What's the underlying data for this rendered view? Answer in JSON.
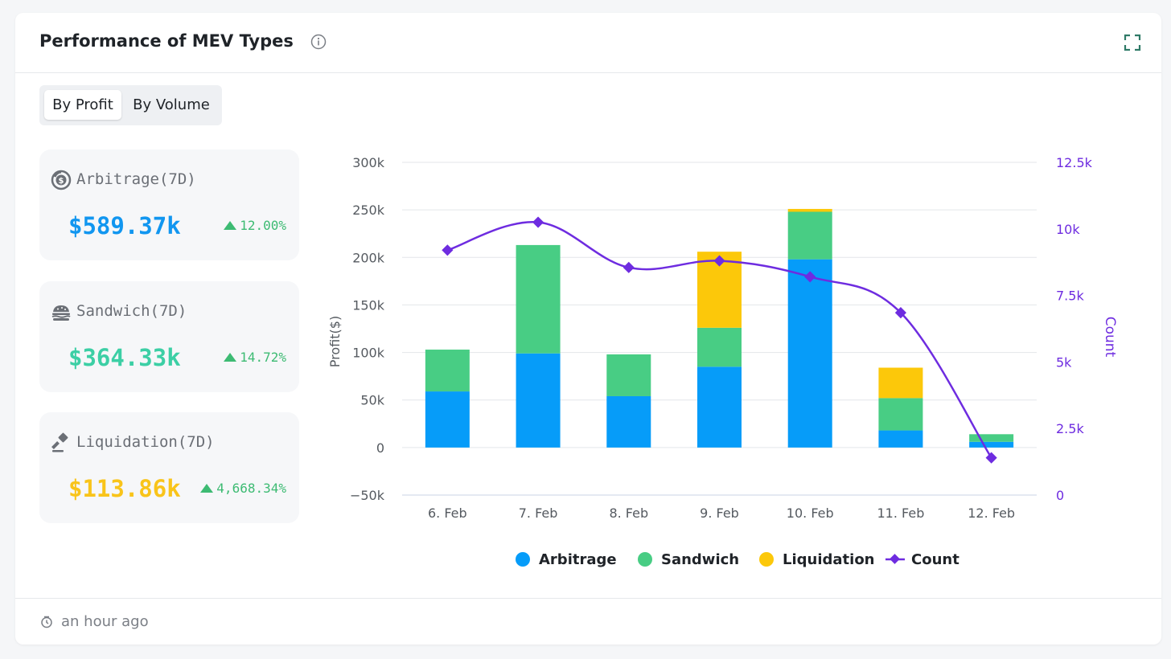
{
  "card": {
    "title": "Performance of MEV Types",
    "footer_time": "an hour ago"
  },
  "toggle": {
    "by_profit": "By Profit",
    "by_volume": "By Volume",
    "selected": "By Profit"
  },
  "stats": [
    {
      "label": "Arbitrage(7D)",
      "value": "$589.37k",
      "change": "12.00%",
      "color": "#1196f0",
      "icon": "arbitrage-coin-icon"
    },
    {
      "label": "Sandwich(7D)",
      "value": "$364.33k",
      "change": "14.72%",
      "color": "#3ccfa5",
      "icon": "sandwich-icon"
    },
    {
      "label": "Liquidation(7D)",
      "value": "$113.86k",
      "change": "4,668.34%",
      "color": "#f9c41a",
      "icon": "gavel-icon"
    }
  ],
  "chart_data": {
    "type": "bar",
    "stacked": true,
    "categories": [
      "6. Feb",
      "7. Feb",
      "8. Feb",
      "9. Feb",
      "10. Feb",
      "11. Feb",
      "12. Feb"
    ],
    "series": [
      {
        "name": "Arbitrage",
        "type": "bar",
        "axis": "left",
        "color": "#069cf9",
        "values": [
          59000,
          99000,
          54000,
          85000,
          198000,
          18000,
          6000
        ]
      },
      {
        "name": "Sandwich",
        "type": "bar",
        "axis": "left",
        "color": "#48cd84",
        "values": [
          44000,
          114000,
          44000,
          41000,
          50000,
          34000,
          8000
        ]
      },
      {
        "name": "Liquidation",
        "type": "bar",
        "axis": "left",
        "color": "#fcc80a",
        "values": [
          0,
          0,
          0,
          80000,
          3000,
          32000,
          0
        ]
      },
      {
        "name": "Count",
        "type": "line",
        "axis": "right",
        "color": "#6e2ce0",
        "values": [
          9200,
          10250,
          8550,
          8800,
          8200,
          6850,
          1400
        ]
      }
    ],
    "yaxis_left": {
      "label": "Profit($)",
      "min": -50000,
      "max": 300000,
      "ticks": [
        -50000,
        0,
        50000,
        100000,
        150000,
        200000,
        250000,
        300000
      ],
      "tick_labels": [
        "−50k",
        "0",
        "50k",
        "100k",
        "150k",
        "200k",
        "250k",
        "300k"
      ]
    },
    "yaxis_right": {
      "label": "Count",
      "min": 0,
      "max": 12500,
      "ticks": [
        0,
        2500,
        5000,
        7500,
        10000,
        12500
      ],
      "tick_labels": [
        "0",
        "2.5k",
        "5k",
        "7.5k",
        "10k",
        "12.5k"
      ]
    },
    "grid": true,
    "legend": "bottom-center"
  }
}
